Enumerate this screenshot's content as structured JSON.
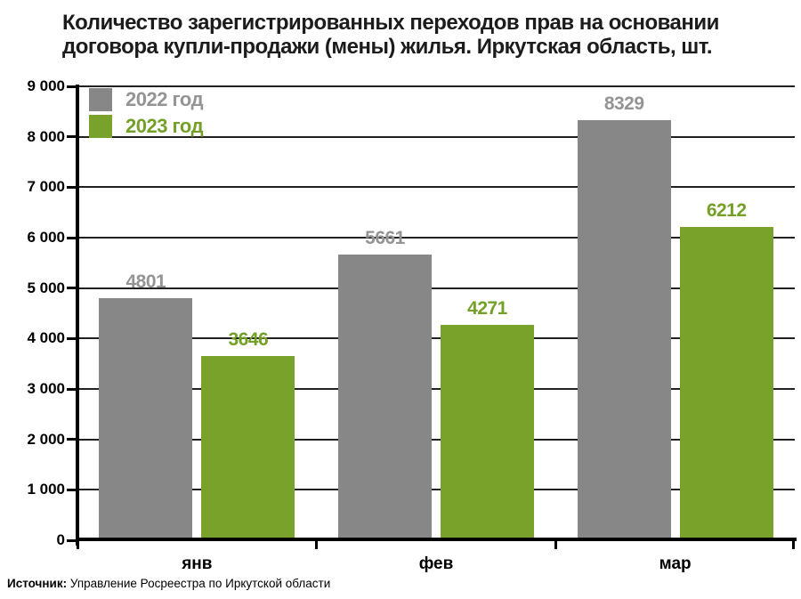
{
  "title_lines": [
    "Количество зарегистрированных переходов прав на основании",
    "договора купли-продажи (мены) жилья. Иркутская область, шт."
  ],
  "chart_data": {
    "type": "bar",
    "title": "Количество зарегистрированных переходов прав на основании договора купли-продажи (мены) жилья. Иркутская область, шт.",
    "categories": [
      "янв",
      "фев",
      "мар"
    ],
    "series": [
      {
        "name": "2022 год",
        "color": "#878787",
        "label_color": "#949494",
        "values": [
          4801,
          5661,
          8329
        ]
      },
      {
        "name": "2023 год",
        "color": "#79a22b",
        "label_color": "#74a028",
        "values": [
          3646,
          4271,
          6212
        ]
      }
    ],
    "ylim": [
      0,
      9000
    ],
    "yticks": [
      {
        "value": 0,
        "label": "0"
      },
      {
        "value": 1000,
        "label": "1 000"
      },
      {
        "value": 2000,
        "label": "2 000"
      },
      {
        "value": 3000,
        "label": "3 000"
      },
      {
        "value": 4000,
        "label": "4 000"
      },
      {
        "value": 5000,
        "label": "5 000"
      },
      {
        "value": 6000,
        "label": "6 000"
      },
      {
        "value": 7000,
        "label": "7 000"
      },
      {
        "value": 8000,
        "label": "8 000"
      },
      {
        "value": 9000,
        "label": "9 000"
      }
    ],
    "grid": true,
    "legend_position": "top-left-inside",
    "colors": {
      "axis": "#000000",
      "gridline": "#212121",
      "background": "#ffffff",
      "title": "#1c1c1c"
    }
  },
  "source": {
    "label": "Источник:",
    "text": " Управление Росреестра по Иркутской области"
  }
}
